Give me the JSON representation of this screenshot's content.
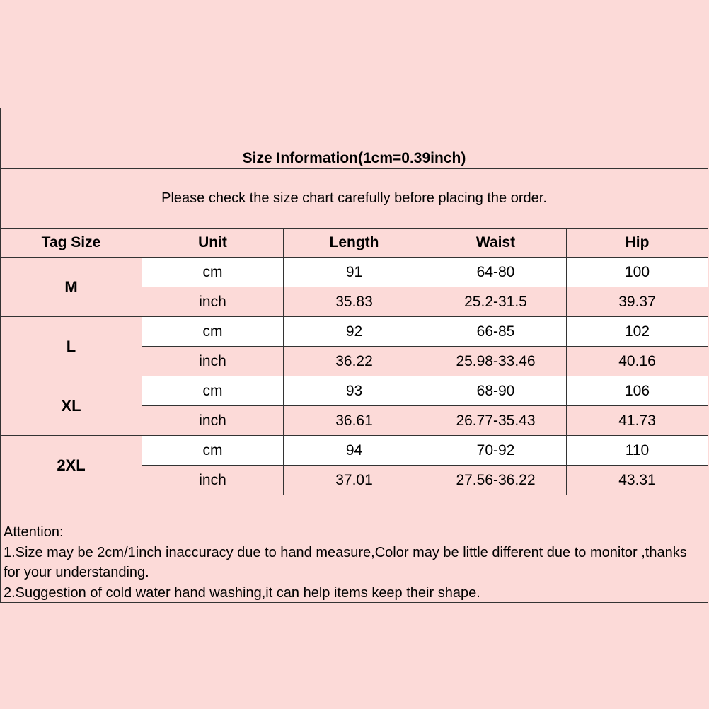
{
  "title": "Size Information(1cm=0.39inch)",
  "subtitle": "Please check the size chart carefully before placing the order.",
  "headers": [
    "Tag Size",
    "Unit",
    "Length",
    "Waist",
    "Hip"
  ],
  "sizes": [
    {
      "tag": "M",
      "cm": [
        "cm",
        "91",
        "64-80",
        "100"
      ],
      "inch": [
        "inch",
        "35.83",
        "25.2-31.5",
        "39.37"
      ]
    },
    {
      "tag": "L",
      "cm": [
        "cm",
        "92",
        "66-85",
        "102"
      ],
      "inch": [
        "inch",
        "36.22",
        "25.98-33.46",
        "40.16"
      ]
    },
    {
      "tag": "XL",
      "cm": [
        "cm",
        "93",
        "68-90",
        "106"
      ],
      "inch": [
        "inch",
        "36.61",
        "26.77-35.43",
        "41.73"
      ]
    },
    {
      "tag": "2XL",
      "cm": [
        "cm",
        "94",
        "70-92",
        "110"
      ],
      "inch": [
        "inch",
        "37.01",
        "27.56-36.22",
        "43.31"
      ]
    }
  ],
  "attention": [
    "Attention:",
    "1.Size may be 2cm/1inch inaccuracy due to hand measure,Color may be little different due to monitor ,thanks for your understanding.",
    "2.Suggestion of cold water hand washing,it can help items keep their shape."
  ],
  "colors": {
    "background": "#fcdad8",
    "highlight_row": "#ffffff",
    "border": "#333333"
  }
}
